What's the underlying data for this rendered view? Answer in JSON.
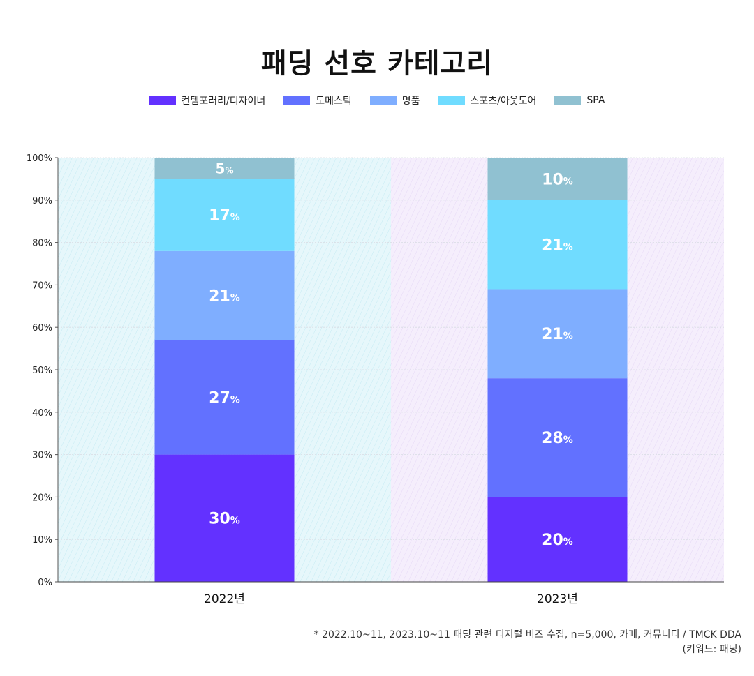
{
  "chart_data": {
    "type": "bar",
    "stacked": true,
    "normalized": true,
    "title": "패딩 선호 카테고리",
    "categories": [
      "2022년",
      "2023년"
    ],
    "series": [
      {
        "name": "컨템포러리/디자이너",
        "values": [
          30,
          20
        ],
        "color": "#6331FF"
      },
      {
        "name": "도메스틱",
        "values": [
          27,
          28
        ],
        "color": "#6271FF"
      },
      {
        "name": "명품",
        "values": [
          21,
          21
        ],
        "color": "#7FAEFF"
      },
      {
        "name": "스포츠/아웃도어",
        "values": [
          17,
          21
        ],
        "color": "#70DCFF"
      },
      {
        "name": "SPA",
        "values": [
          5,
          10
        ],
        "color": "#90C1D1"
      }
    ],
    "y_ticks": [
      "0%",
      "10%",
      "20%",
      "30%",
      "40%",
      "50%",
      "60%",
      "70%",
      "80%",
      "90%",
      "100%"
    ],
    "ylim": [
      0,
      100
    ],
    "value_suffix": "%",
    "grid": true,
    "legend_position": "top-center",
    "label_color": "#FFFFFF",
    "panel_colors": [
      "#E6F7FB",
      "#F5EEFC"
    ],
    "xlabel": "",
    "ylabel": ""
  },
  "source": {
    "line1": "* 2022.10~11, 2023.10~11 패딩 관련 디지털 버즈 수집, n=5,000, 카페, 커뮤니티 / TMCK DDA",
    "line2": "(키워드: 패딩)"
  }
}
